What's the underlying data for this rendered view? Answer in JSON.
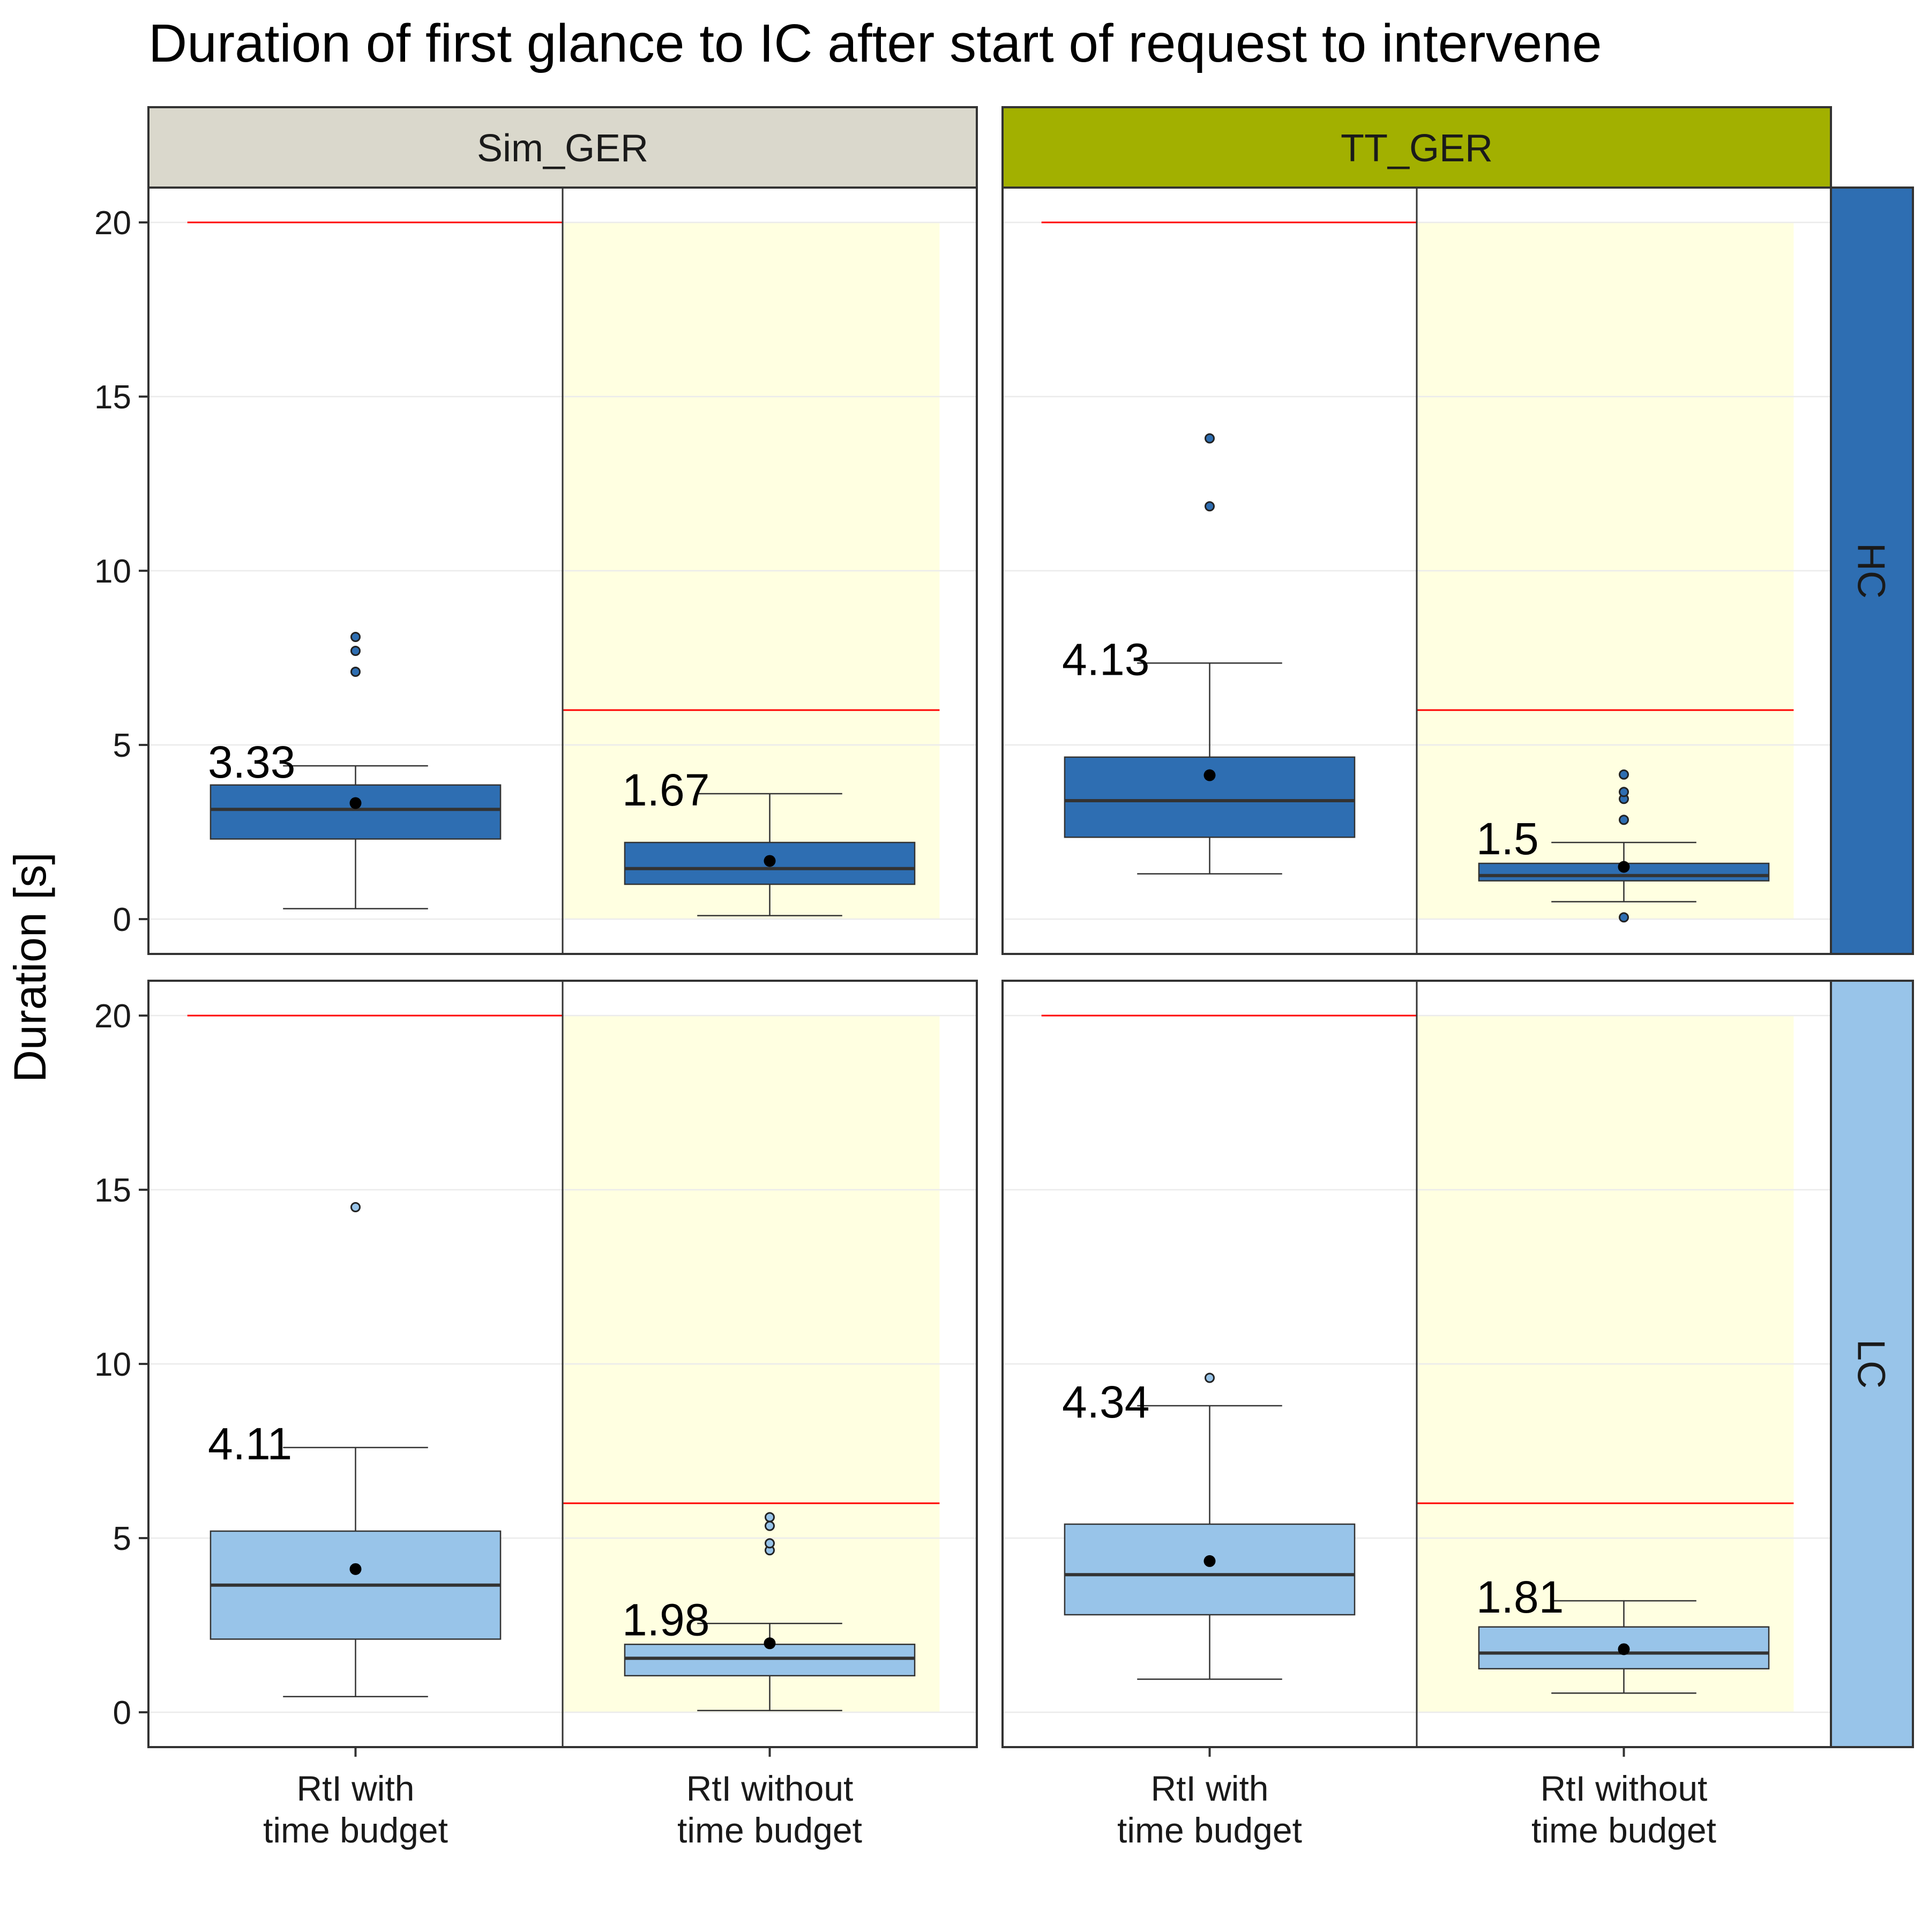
{
  "chart_data": {
    "type": "box",
    "title": "Duration of first glance to IC after start of request to intervene",
    "xlabel": "",
    "ylabel": "Duration [s]",
    "ylim": [
      -1,
      21
    ],
    "yticks": [
      0,
      5,
      10,
      15,
      20
    ],
    "grid": true,
    "legend": "none",
    "categories": [
      "RtI with\ntime budget",
      "RtI without\ntime budget"
    ],
    "columns": [
      {
        "label": "Sim_GER",
        "strip_color": "#dad8cc"
      },
      {
        "label": "TT_GER",
        "strip_color": "#a2b000"
      }
    ],
    "rows": [
      {
        "label": "HC",
        "strip_color": "#2e6eb2",
        "box_fill": "#2e6eb2"
      },
      {
        "label": "LC",
        "strip_color": "#98c4e9",
        "box_fill": "#98c4e9"
      }
    ],
    "shaded_category_color": "#ffffe1",
    "reference_lines": {
      "color": "#ff0000",
      "values": [
        20,
        6
      ]
    },
    "panels": [
      {
        "column": "Sim_GER",
        "row": "HC",
        "boxes": [
          {
            "category": 0,
            "whisker_low": 0.3,
            "q1": 2.3,
            "median": 3.15,
            "q3": 3.85,
            "whisker_high": 4.4,
            "mean": 3.33,
            "mean_label": "3.33",
            "outliers": [
              7.1,
              7.7,
              8.1
            ]
          },
          {
            "category": 1,
            "whisker_low": 0.1,
            "q1": 1.0,
            "median": 1.45,
            "q3": 2.2,
            "whisker_high": 3.6,
            "mean": 1.67,
            "mean_label": "1.67",
            "outliers": []
          }
        ]
      },
      {
        "column": "TT_GER",
        "row": "HC",
        "boxes": [
          {
            "category": 0,
            "whisker_low": 1.3,
            "q1": 2.35,
            "median": 3.4,
            "q3": 4.65,
            "whisker_high": 7.35,
            "mean": 4.13,
            "mean_label": "4.13",
            "outliers": [
              11.85,
              13.8
            ]
          },
          {
            "category": 1,
            "whisker_low": 0.5,
            "q1": 1.1,
            "median": 1.25,
            "q3": 1.6,
            "whisker_high": 2.2,
            "mean": 1.5,
            "mean_label": "1.5",
            "outliers": [
              0.05,
              2.85,
              3.45,
              3.65,
              4.15
            ]
          }
        ]
      },
      {
        "column": "Sim_GER",
        "row": "LC",
        "boxes": [
          {
            "category": 0,
            "whisker_low": 0.45,
            "q1": 2.1,
            "median": 3.65,
            "q3": 5.2,
            "whisker_high": 7.6,
            "mean": 4.11,
            "mean_label": "4.11",
            "outliers": [
              14.5
            ]
          },
          {
            "category": 1,
            "whisker_low": 0.05,
            "q1": 1.05,
            "median": 1.55,
            "q3": 1.95,
            "whisker_high": 2.55,
            "mean": 1.98,
            "mean_label": "1.98",
            "outliers": [
              4.65,
              4.85,
              5.35,
              5.6
            ]
          }
        ]
      },
      {
        "column": "TT_GER",
        "row": "LC",
        "boxes": [
          {
            "category": 0,
            "whisker_low": 0.95,
            "q1": 2.8,
            "median": 3.95,
            "q3": 5.4,
            "whisker_high": 8.8,
            "mean": 4.34,
            "mean_label": "4.34",
            "outliers": [
              9.6
            ]
          },
          {
            "category": 1,
            "whisker_low": 0.55,
            "q1": 1.25,
            "median": 1.7,
            "q3": 2.45,
            "whisker_high": 3.2,
            "mean": 1.81,
            "mean_label": "1.81",
            "outliers": []
          }
        ]
      }
    ]
  }
}
